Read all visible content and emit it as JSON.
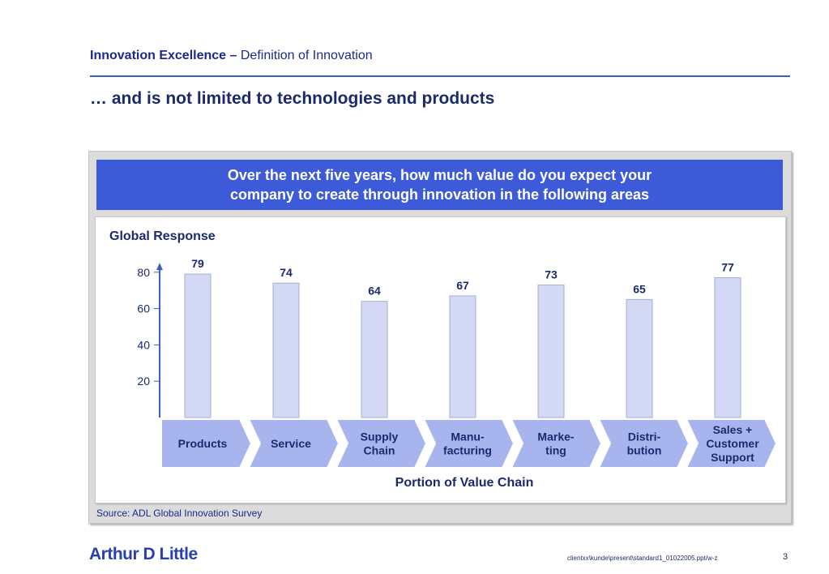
{
  "header": {
    "title_bold": "Innovation Excellence –",
    "title_rest": "Definition of Innovation",
    "subtitle": "… and is not limited to technologies and products"
  },
  "question": {
    "line1": "Over the next five years, how much value do you expect your",
    "line2": "company to create through innovation in the following areas"
  },
  "chart_label": "Global Response",
  "chart_data": {
    "type": "bar",
    "title": "Global Response",
    "xlabel": "Portion of Value Chain",
    "ylabel": "",
    "categories": [
      [
        "Products"
      ],
      [
        "Service"
      ],
      [
        "Supply",
        "Chain"
      ],
      [
        "Manu-",
        "facturing"
      ],
      [
        "Marke-",
        "ting"
      ],
      [
        "Distri-",
        "bution"
      ],
      [
        "Sales +",
        "Customer",
        "Support"
      ]
    ],
    "values": [
      79,
      74,
      64,
      67,
      73,
      65,
      77
    ],
    "y_ticks": [
      20,
      40,
      60,
      80
    ],
    "ylim": [
      0,
      87
    ],
    "grid": false
  },
  "source": "Source: ADL Global Innovation Survey",
  "footer": {
    "logo": "Arthur D Little",
    "path": "clientxx\\kunde\\present\\standard1_01022005.ppt/w-z",
    "page": "3"
  },
  "colors": {
    "bar_fill": "#d3d9f5",
    "bar_stroke": "#a6b0d8",
    "chevron_fill": "#a7b4ee",
    "axis": "#3f5fbf",
    "question_bg": "#3d5bd9"
  }
}
